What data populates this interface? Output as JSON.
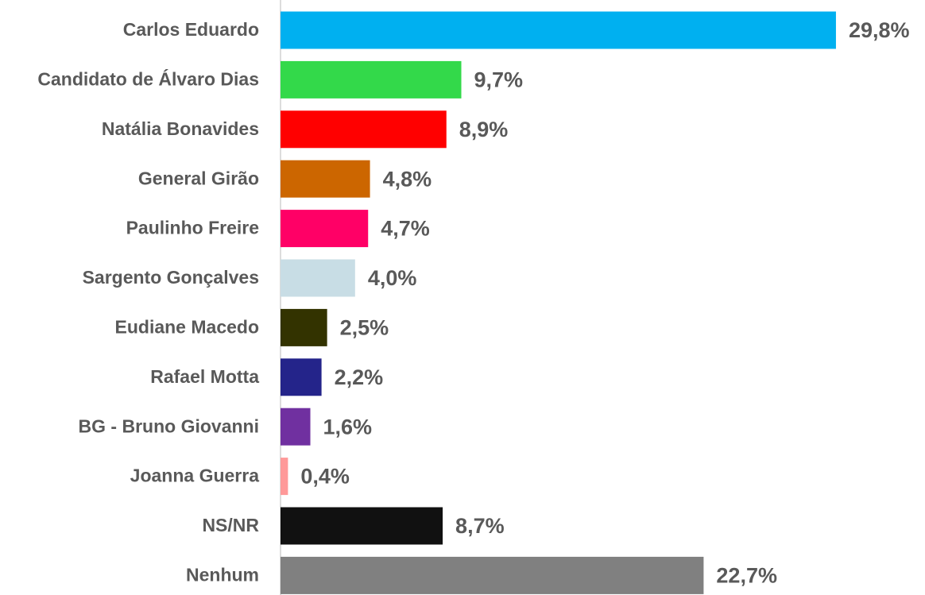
{
  "chart_data": {
    "type": "bar",
    "orientation": "horizontal",
    "categories": [
      "Carlos Eduardo",
      "Candidato de Álvaro Dias",
      "Natália Bonavides",
      "General Girão",
      "Paulinho Freire",
      "Sargento Gonçalves",
      "Eudiane Macedo",
      "Rafael Motta",
      "BG - Bruno Giovanni",
      "Joanna Guerra",
      "NS/NR",
      "Nenhum"
    ],
    "values": [
      29.8,
      9.7,
      8.9,
      4.8,
      4.7,
      4.0,
      2.5,
      2.2,
      1.6,
      0.4,
      8.7,
      22.7
    ],
    "value_labels": [
      "29,8%",
      "9,7%",
      "8,9%",
      "4,8%",
      "4,7%",
      "4,0%",
      "2,5%",
      "2,2%",
      "1,6%",
      "0,4%",
      "8,7%",
      "22,7%"
    ],
    "colors": [
      "#00b0f0",
      "#33d94a",
      "#ff0000",
      "#cc6600",
      "#ff0066",
      "#c8dde5",
      "#333300",
      "#24248a",
      "#7030a0",
      "#ff9999",
      "#111111",
      "#808080"
    ],
    "xlim": [
      0,
      33
    ]
  }
}
